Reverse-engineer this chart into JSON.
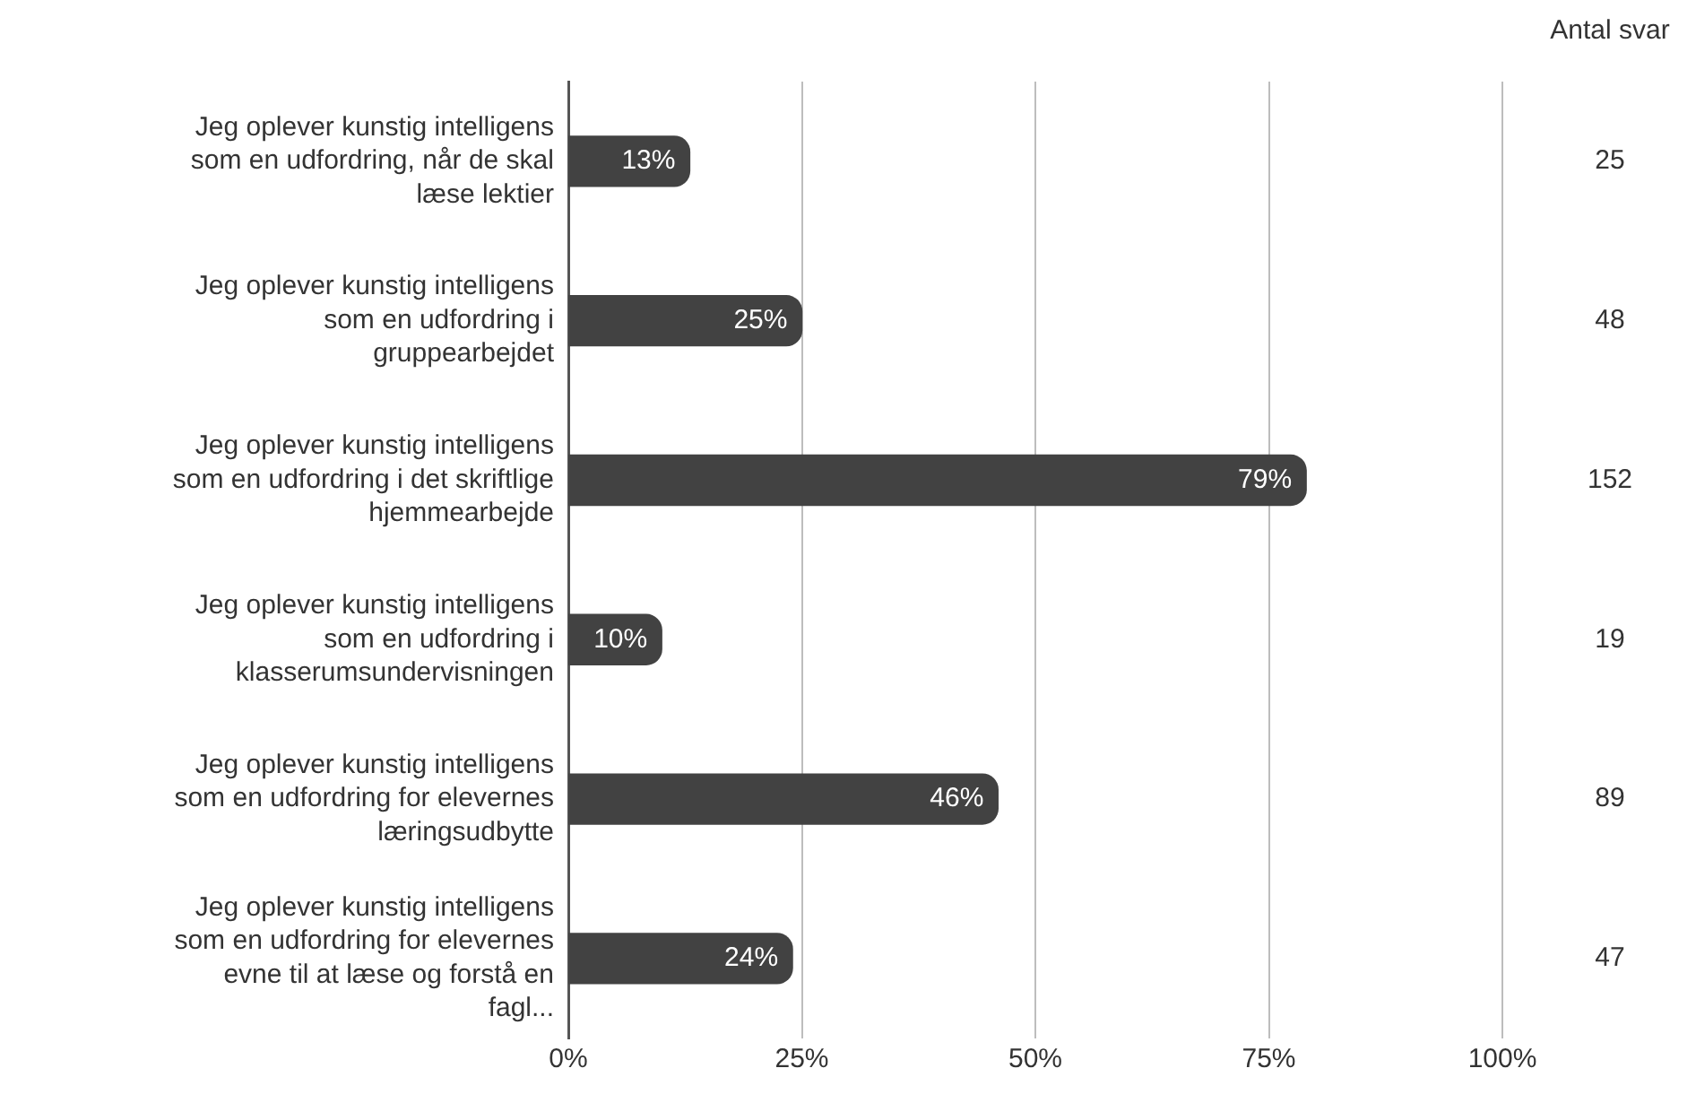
{
  "chart_data": {
    "type": "bar",
    "orientation": "horizontal",
    "categories": [
      "Jeg oplever kunstig intelligens som en udfordring, når de skal læse lektier",
      "Jeg oplever kunstig intelligens som en udfordring i gruppearbejdet",
      "Jeg oplever kunstig intelligens som en udfordring i det skriftlige hjemmearbejde",
      "Jeg oplever kunstig intelligens som en udfordring i klasserumsundervisningen",
      "Jeg oplever kunstig intelligens som en udfordring for elevernes læringsudbytte",
      "Jeg oplever kunstig intelligens som en udfordring for elevernes evne til at læse og forstå en fagl..."
    ],
    "values": [
      13,
      25,
      79,
      10,
      46,
      24
    ],
    "value_labels": [
      "13%",
      "25%",
      "79%",
      "10%",
      "46%",
      "24%"
    ],
    "color": "#424242",
    "xlim": [
      0,
      100
    ],
    "xticks": [
      {
        "value": 0,
        "label": "0%"
      },
      {
        "value": 25,
        "label": "25%"
      },
      {
        "value": 50,
        "label": "50%"
      },
      {
        "value": 75,
        "label": "75%"
      },
      {
        "value": 100,
        "label": "100%"
      }
    ],
    "grid": "x",
    "legend": false,
    "annotations": [
      "Antal svar",
      "25",
      "48",
      "152",
      "19",
      "89",
      "47"
    ]
  }
}
